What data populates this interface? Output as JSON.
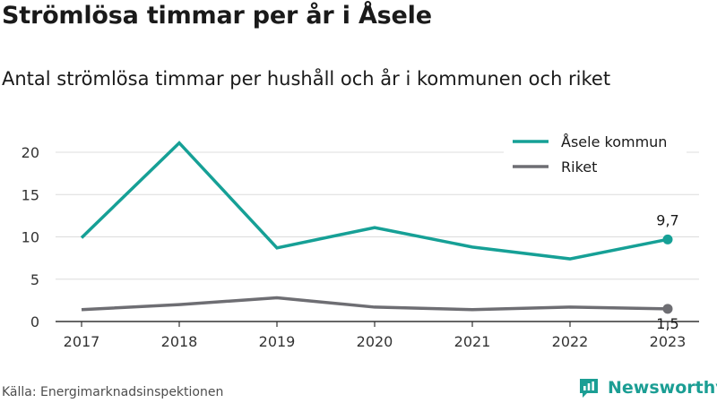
{
  "title": "Strömlösa timmar per år i Åsele",
  "subtitle": "Antal strömlösa timmar per hushåll och år i kommunen och riket",
  "source": "Källa: Energimarknadsinspektionen",
  "brand": {
    "name": "Newsworthy",
    "icon": "newsworthy-logo-icon",
    "color": "#1b9e94"
  },
  "chart_data": {
    "type": "line",
    "x": [
      "2017",
      "2018",
      "2019",
      "2020",
      "2021",
      "2022",
      "2023"
    ],
    "ylim": [
      0,
      22
    ],
    "yticks": [
      "0",
      "5",
      "10",
      "15",
      "20"
    ],
    "grid": true,
    "legend_position": "top-right",
    "series": [
      {
        "name": "Åsele kommun",
        "color": "#16a096",
        "values": [
          9.9,
          21.1,
          8.7,
          11.1,
          8.8,
          7.4,
          9.7
        ],
        "end_label": "9,7"
      },
      {
        "name": "Riket",
        "color": "#6e6e73",
        "values": [
          1.4,
          2.0,
          2.8,
          1.7,
          1.4,
          1.7,
          1.5
        ],
        "end_label": "1,5"
      }
    ]
  }
}
